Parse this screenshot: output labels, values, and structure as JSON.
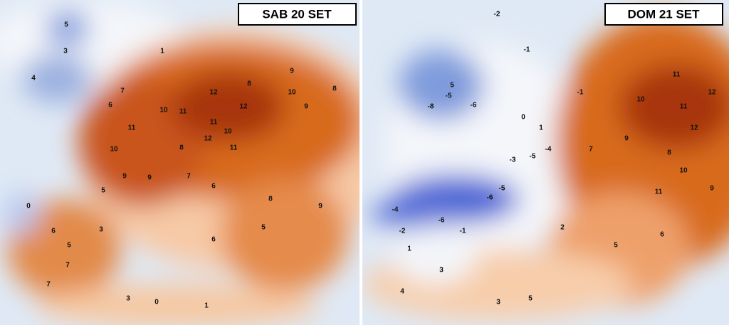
{
  "panels": [
    {
      "title": "SAB 20 SET",
      "labels": [
        5,
        3,
        1,
        4,
        7,
        6,
        10,
        11,
        12,
        8,
        12,
        11,
        10,
        9,
        10,
        9,
        8,
        11,
        10,
        9,
        8,
        11,
        12,
        9,
        7,
        6,
        5,
        6,
        5,
        7,
        7,
        3,
        6,
        5,
        8,
        9,
        0,
        3,
        0,
        1
      ]
    },
    {
      "title": "DOM 21 SET",
      "labels": [
        -2,
        -1,
        5,
        -5,
        -6,
        -8,
        11,
        12,
        10,
        11,
        12,
        9,
        7,
        8,
        10,
        11,
        9,
        -1,
        0,
        1,
        -4,
        -5,
        -3,
        -6,
        -5,
        -4,
        -6,
        -2,
        -1,
        2,
        5,
        6,
        1,
        3,
        4,
        5,
        3
      ]
    }
  ]
}
